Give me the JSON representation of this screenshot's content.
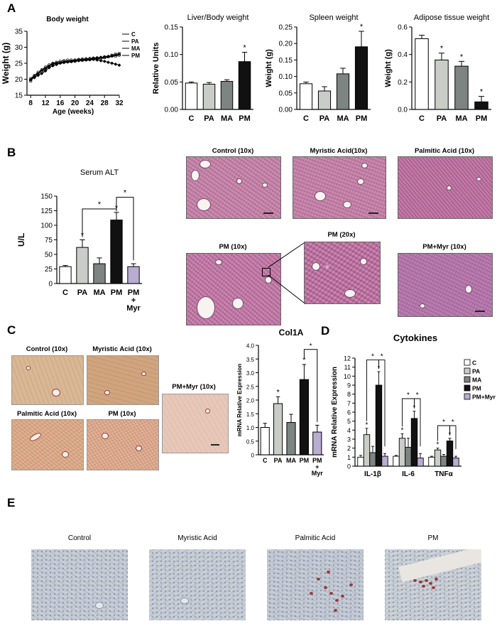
{
  "figure": {
    "panels": {
      "A": "A",
      "B": "B",
      "C": "C",
      "D": "D",
      "E": "E"
    },
    "colors": {
      "C": "#ffffff",
      "PA": "#c9ccc7",
      "MA": "#7d8481",
      "PM": "#111111",
      "PM_Myr": "#b9acd1",
      "he_base": "#c47a9b",
      "sirius_base": "#d4b38a",
      "ihc_base": "#c6cdd6"
    },
    "panelB_images": [
      {
        "label": "Control (10x)"
      },
      {
        "label": "Myristic Acid(10x)"
      },
      {
        "label": "Palmitic Acid (10x)"
      },
      {
        "label": "PM (10x)"
      },
      {
        "label": "PM (20x)"
      },
      {
        "label": "PM+Myr (10x)"
      }
    ],
    "panelC_images": [
      {
        "label": "Control (10x)"
      },
      {
        "label": "Myristic Acid (10x)"
      },
      {
        "label": "Palmitic Acid (10x)"
      },
      {
        "label": "PM (10x)"
      },
      {
        "label": "PM+Myr (10x)"
      }
    ],
    "panelE_images": [
      {
        "label": "Control"
      },
      {
        "label": "Myristic Acid"
      },
      {
        "label": "Palmitic Acid"
      },
      {
        "label": "PM"
      }
    ]
  },
  "chart_data": [
    {
      "id": "body-weight",
      "type": "line",
      "title": "Body weight",
      "xlabel": "Age (weeks)",
      "ylabel": "Weight (g)",
      "xlim": [
        7,
        32
      ],
      "ylim": [
        15,
        35
      ],
      "xticks": [
        "8",
        "12",
        "16",
        "20",
        "24",
        "28",
        "32"
      ],
      "yticks": [
        "15",
        "20",
        "25",
        "30",
        "35"
      ],
      "x": [
        8,
        9,
        10,
        11,
        12,
        13,
        14,
        15,
        16,
        17,
        18,
        19,
        20,
        21,
        22,
        23,
        24,
        25,
        26,
        27,
        28,
        29,
        30,
        31,
        32
      ],
      "series": [
        {
          "name": "C",
          "values": [
            20.2,
            21.2,
            22.2,
            23.0,
            23.8,
            24.5,
            25.0,
            25.3,
            25.6,
            25.8,
            26.0,
            26.0,
            26.0,
            26.2,
            26.3,
            26.4,
            26.5,
            26.6,
            26.7,
            26.8,
            27.0,
            27.0,
            27.2,
            27.2,
            27.5
          ]
        },
        {
          "name": "PA",
          "values": [
            19.5,
            20.8,
            21.8,
            22.4,
            23.2,
            24.0,
            24.8,
            25.0,
            25.2,
            25.4,
            25.5,
            25.6,
            25.8,
            26.0,
            26.0,
            26.1,
            26.2,
            26.4,
            26.5,
            26.5,
            26.8,
            27.0,
            27.5,
            27.8,
            28.0
          ]
        },
        {
          "name": "MA",
          "values": [
            20.0,
            21.0,
            21.8,
            22.8,
            23.5,
            24.2,
            24.8,
            25.0,
            25.2,
            25.5,
            25.6,
            25.7,
            25.8,
            26.0,
            26.1,
            26.2,
            26.3,
            26.5,
            26.6,
            26.8,
            27.0,
            27.2,
            27.4,
            27.6,
            27.8
          ]
        },
        {
          "name": "PM",
          "values": [
            19.8,
            20.5,
            21.2,
            21.8,
            22.6,
            23.6,
            24.2,
            24.6,
            25.0,
            25.2,
            25.4,
            25.5,
            25.6,
            25.8,
            25.9,
            26.0,
            26.1,
            26.2,
            26.0,
            25.8,
            25.6,
            25.3,
            25.0,
            24.7,
            24.4
          ]
        }
      ],
      "legend": "right"
    },
    {
      "id": "liver-body",
      "type": "bar",
      "title": "Liver/Body weight",
      "ylabel": "Relative Units",
      "ylim": [
        0,
        0.15
      ],
      "yticks": [
        "0.00",
        "0.05",
        "0.10",
        "0.15"
      ],
      "categories": [
        "C",
        "PA",
        "MA",
        "PM"
      ],
      "values": [
        0.048,
        0.046,
        0.051,
        0.087
      ],
      "errors": [
        0.002,
        0.003,
        0.003,
        0.017
      ],
      "significance": [
        null,
        null,
        null,
        "*"
      ]
    },
    {
      "id": "spleen",
      "type": "bar",
      "title": "Spleen weight",
      "ylabel": "Weight (g)",
      "ylim": [
        0,
        0.25
      ],
      "yticks": [
        "0.00",
        "0.05",
        "0.10",
        "0.15",
        "0.20",
        "0.25"
      ],
      "categories": [
        "C",
        "PA",
        "MA",
        "PM"
      ],
      "values": [
        0.078,
        0.056,
        0.108,
        0.19
      ],
      "errors": [
        0.005,
        0.013,
        0.017,
        0.047
      ],
      "significance": [
        null,
        null,
        null,
        "*"
      ]
    },
    {
      "id": "adipose",
      "type": "bar",
      "title": "Adipose tissue weight",
      "ylabel": "Weight (g)",
      "ylim": [
        0,
        0.6
      ],
      "yticks": [
        "0.0",
        "0.2",
        "0.4",
        "0.6"
      ],
      "categories": [
        "C",
        "PA",
        "MA",
        "PM"
      ],
      "values": [
        0.515,
        0.36,
        0.315,
        0.055
      ],
      "errors": [
        0.025,
        0.05,
        0.035,
        0.04
      ],
      "significance": [
        null,
        "*",
        "*",
        "*"
      ]
    },
    {
      "id": "serum-alt",
      "type": "bar",
      "title": "Serum ALT",
      "ylabel": "U/L",
      "ylim": [
        0,
        150
      ],
      "yticks": [
        "0",
        "25",
        "50",
        "75",
        "100",
        "125",
        "150"
      ],
      "categories": [
        "C",
        "PA",
        "MA",
        "PM",
        "PM\n+\nMyr"
      ],
      "values": [
        29,
        62,
        34,
        109,
        29
      ],
      "errors": [
        2,
        13,
        10,
        13,
        5
      ],
      "significance": [
        null,
        "*",
        null,
        "*",
        null
      ],
      "brackets": [
        {
          "from": 1,
          "to": 3,
          "label": "*"
        },
        {
          "from": 3,
          "to": 4,
          "label": "*"
        }
      ]
    },
    {
      "id": "col1a",
      "type": "bar",
      "title": "Col1A",
      "ylabel": "mRNA Relative Expression",
      "ylim": [
        0,
        4.0
      ],
      "yticks": [
        "0",
        "0.5",
        "1.0",
        "1.5",
        "2.0",
        "2.5",
        "3.0",
        "3.5",
        "4.0"
      ],
      "categories": [
        "C",
        "PA",
        "MA",
        "PM",
        "PM\n+\nMyr"
      ],
      "values": [
        1.0,
        1.87,
        1.18,
        2.75,
        0.83
      ],
      "errors": [
        0.15,
        0.25,
        0.3,
        0.55,
        0.25
      ],
      "significance": [
        null,
        "*",
        null,
        "*",
        null
      ],
      "brackets": [
        {
          "from": 3,
          "to": 4,
          "label": "*"
        }
      ]
    },
    {
      "id": "cytokines",
      "type": "bar",
      "title": "Cytokines",
      "ylabel": "mRNA Relative Expression",
      "ylim": [
        0,
        12
      ],
      "yticks": [
        "0",
        "1",
        "2",
        "3",
        "4",
        "5",
        "6",
        "7",
        "8",
        "9",
        "10",
        "11",
        "12"
      ],
      "categories": [
        "IL-1β",
        "IL-6",
        "TNFα"
      ],
      "series": [
        {
          "name": "C",
          "values": [
            1.0,
            1.1,
            1.0
          ],
          "errors": [
            0.2,
            0.1,
            0.1
          ]
        },
        {
          "name": "PA",
          "values": [
            3.5,
            3.1,
            1.8
          ],
          "errors": [
            0.7,
            0.5,
            0.2
          ]
        },
        {
          "name": "MA",
          "values": [
            1.5,
            2.1,
            1.1
          ],
          "errors": [
            0.7,
            1.0,
            0.2
          ]
        },
        {
          "name": "PM",
          "values": [
            9.0,
            5.3,
            2.8
          ],
          "errors": [
            1.5,
            0.8,
            0.3
          ]
        },
        {
          "name": "PM+Myr",
          "values": [
            1.1,
            0.9,
            0.9
          ],
          "errors": [
            0.3,
            0.5,
            0.2
          ]
        }
      ],
      "significance": [
        [
          null,
          "*",
          null,
          "*",
          null
        ],
        [
          null,
          "*",
          null,
          "*",
          null
        ],
        [
          null,
          "*",
          null,
          "*",
          null
        ]
      ],
      "brackets": [
        {
          "group": 0,
          "from": 1,
          "to": 3,
          "label": "*"
        },
        {
          "group": 0,
          "from": 3,
          "to": 4,
          "label": "*"
        },
        {
          "group": 1,
          "from": 1,
          "to": 3,
          "label": "*"
        },
        {
          "group": 1,
          "from": 3,
          "to": 4,
          "label": "*"
        },
        {
          "group": 2,
          "from": 1,
          "to": 3,
          "label": "*"
        },
        {
          "group": 2,
          "from": 3,
          "to": 4,
          "label": "*"
        }
      ],
      "legend": "right"
    }
  ]
}
